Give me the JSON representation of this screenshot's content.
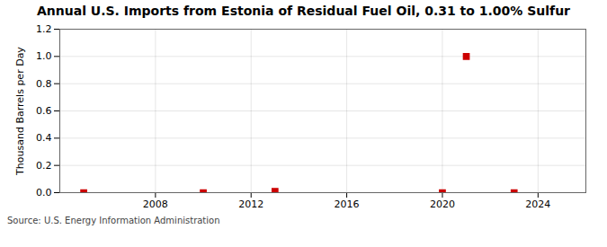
{
  "chart_data": {
    "type": "scatter",
    "title": "Annual U.S. Imports from Estonia of Residual Fuel Oil, 0.31 to 1.00% Sulfur",
    "ylabel": "Thousand Barrels per Day",
    "source": "Source: U.S. Energy Information Administration",
    "x": [
      2005,
      2010,
      2013,
      2021,
      2020,
      2023
    ],
    "values": [
      0.0,
      0.0,
      0.01,
      1.0,
      0.0,
      0.0
    ],
    "color": "#cc0000",
    "marker": "square",
    "xlim": [
      2004,
      2026
    ],
    "xticks": [
      2008,
      2012,
      2016,
      2020,
      2024
    ],
    "ylim": [
      0.0,
      1.2
    ],
    "yticks": [
      {
        "value": 0.0,
        "label": "0.0"
      },
      0.2,
      0.4,
      0.6,
      0.8,
      {
        "value": 1.0,
        "label": "1.0"
      },
      1.2
    ],
    "grid": true
  }
}
